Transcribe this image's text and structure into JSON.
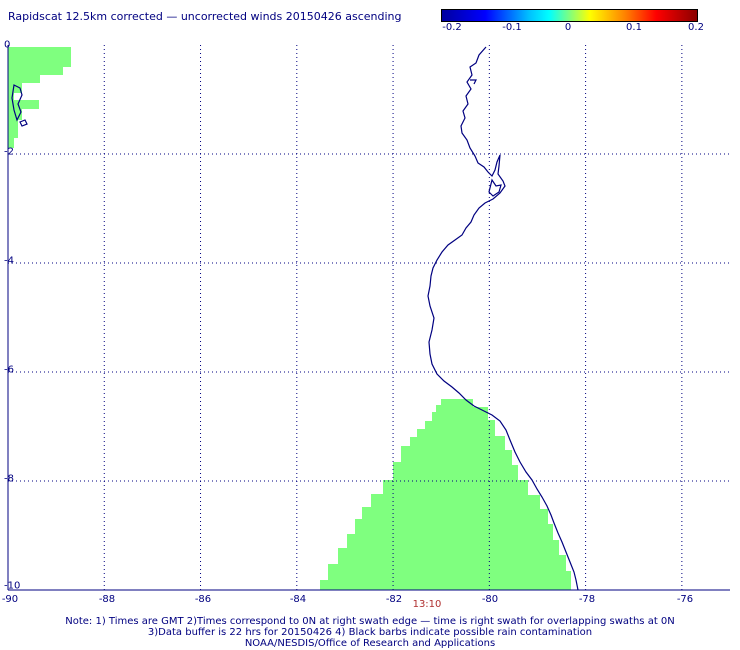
{
  "title": "Rapidscat 12.5km corrected — uncorrected winds 20150426 ascending",
  "colorbar": {
    "ticks": [
      "-0.2",
      "-0.1",
      "0",
      "0.1",
      "0.2"
    ],
    "range": [
      -0.2,
      0.2
    ]
  },
  "axes": {
    "x_ticks": [
      "-90",
      "-88",
      "-86",
      "-84",
      "-82",
      "-80",
      "-78",
      "-76"
    ],
    "y_ticks": [
      "0",
      "-2",
      "-4",
      "-6",
      "-8",
      "-10"
    ],
    "xlim": [
      -90,
      -75
    ],
    "ylim": [
      -10,
      0
    ],
    "grid": true
  },
  "swath_time": "13:10",
  "colors": {
    "text": "#000080",
    "coastline": "#000080",
    "swath_fill": "#7fff7f",
    "grid": "#000080",
    "time_label": "#b03030"
  },
  "notes": [
    "Note: 1) Times are GMT 2)Times correspond to 0N at right swath edge — time is right swath for overlapping swaths at 0N",
    "3)Data buffer is 22 hrs for 20150426 4) Black barbs indicate possible rain contamination",
    "NOAA/NESDIS/Office of Research and Applications"
  ]
}
